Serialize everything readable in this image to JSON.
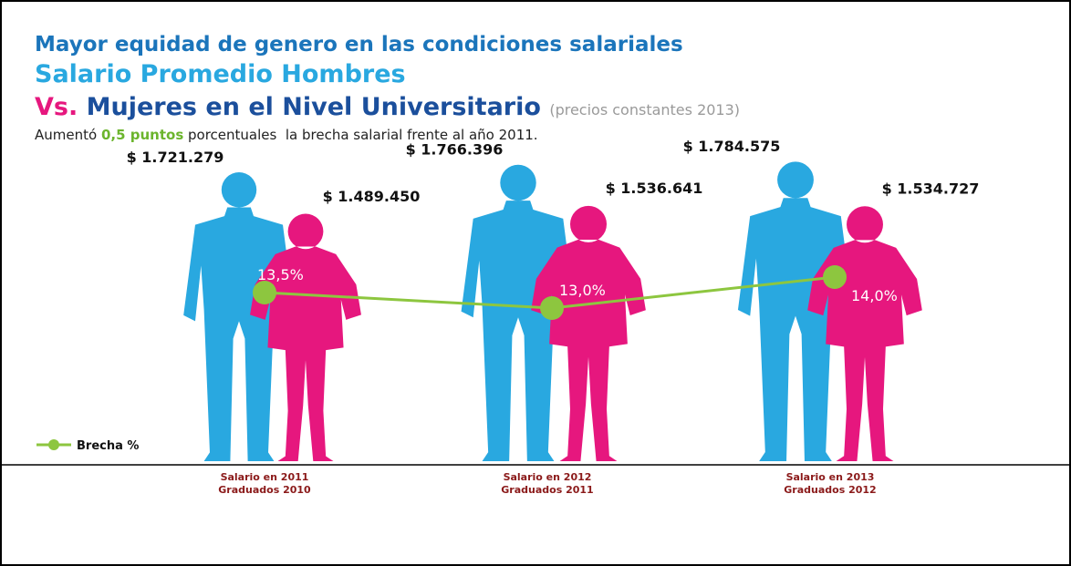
{
  "chart_data": {
    "type": "pictograph",
    "title": "Mayor equidad de genero en las condiciones salariales",
    "title_line2": "Salario Promedio Hombres",
    "title_line3_prefix": "Vs.",
    "title_line3": "Mujeres en el Nivel Universitario",
    "title_note": "(precios constantes 2013)",
    "subtitle_parts": [
      "Aumentó ",
      "0,5 puntos",
      " porcentuales  la brecha salarial frente al año 2011."
    ],
    "categories": [
      "Salario en 2011",
      "Salario en 2012",
      "Salario en 2013"
    ],
    "category_sublabels": [
      "Graduados 2010",
      "Graduados 2011",
      "Graduados 2012"
    ],
    "series": [
      {
        "color": "#29a8e0",
        "values": [
          1721279,
          1766396,
          1784575
        ],
        "value_labels": [
          "$ 1.721.279",
          "$ 1.766.396",
          "$ 1.784.575"
        ]
      },
      {
        "color": "#e6177e",
        "values": [
          1489450,
          1536641,
          1534727
        ],
        "value_labels": [
          "$ 1.489.450",
          "$ 1.536.641",
          "$ 1.534.727"
        ]
      },
      {
        "name": "Brecha %",
        "color": "#8dc63f",
        "values": [
          13.5,
          13.0,
          14.0
        ],
        "value_labels": [
          "13,5%",
          "13,0%",
          "14,0%"
        ]
      }
    ],
    "legend": "bottom-left"
  }
}
